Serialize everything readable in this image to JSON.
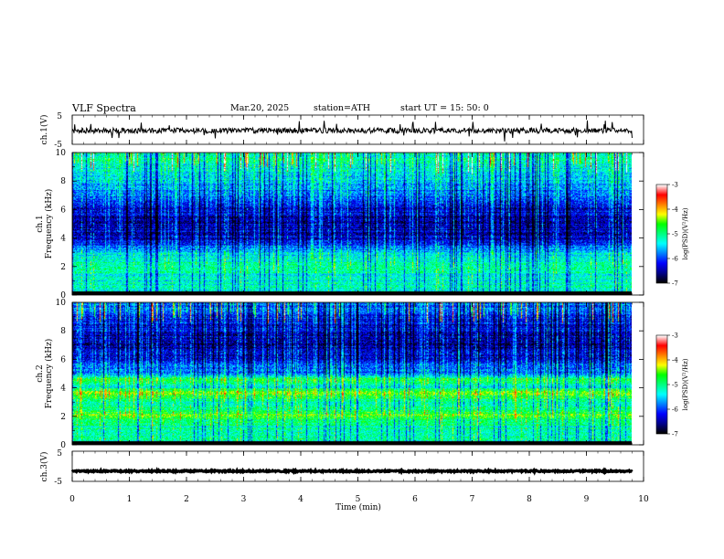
{
  "header": {
    "title": "VLF  Spectra",
    "date": "Mar.20, 2025",
    "station": "station=ATH",
    "start_ut": "start  UT  =    15: 50: 0"
  },
  "chart_data": [
    {
      "type": "line",
      "id": "ch1-waveform",
      "ylabel": "ch.1(V)",
      "ylim": [
        -5,
        5
      ],
      "yticks": [
        "5",
        "-5"
      ],
      "xlim": [
        0,
        10
      ],
      "note": "noisy waveform centred near -0.3 V, amplitude about ±1 V, with short spikes",
      "y_center": -0.3,
      "y_amplitude": 0.9
    },
    {
      "type": "heatmap",
      "id": "ch1-spectrogram",
      "ylabel": "ch.1\nFrequency  (kHz)",
      "ylim": [
        0,
        10
      ],
      "yticks": [
        "0",
        "2",
        "4",
        "6",
        "8",
        "10"
      ],
      "xlim": [
        0,
        9.8
      ],
      "colorbar": {
        "label": "log(PSD)(V²/Hz)",
        "ticks": [
          "-3",
          "-4",
          "-5",
          "-6",
          "-7"
        ],
        "range": [
          -7,
          -3
        ]
      },
      "background_level_by_khz": [
        [
          0,
          -5.3
        ],
        [
          1,
          -5.4
        ],
        [
          2,
          -5.0
        ],
        [
          3,
          -5.5
        ],
        [
          4,
          -6.4
        ],
        [
          5,
          -6.5
        ],
        [
          6,
          -6.4
        ],
        [
          7,
          -5.9
        ],
        [
          8,
          -5.6
        ],
        [
          9,
          -5.4
        ],
        [
          10,
          -5.3
        ]
      ]
    },
    {
      "type": "heatmap",
      "id": "ch2-spectrogram",
      "ylabel": "ch.2\nFrequency  (kHz)",
      "ylim": [
        0,
        10
      ],
      "yticks": [
        "0",
        "2",
        "4",
        "6",
        "8",
        "10"
      ],
      "xlim": [
        0,
        9.8
      ],
      "colorbar": {
        "label": "log(PSD)(V²/Hz)",
        "ticks": [
          "-3",
          "-4",
          "-5",
          "-6",
          "-7"
        ],
        "range": [
          -7,
          -3
        ]
      },
      "background_level_by_khz": [
        [
          0,
          -5.2
        ],
        [
          1,
          -5.3
        ],
        [
          2,
          -4.6
        ],
        [
          3,
          -5.2
        ],
        [
          3.6,
          -4.3
        ],
        [
          4,
          -5.3
        ],
        [
          4.5,
          -4.7
        ],
        [
          5,
          -5.8
        ],
        [
          6,
          -6.3
        ],
        [
          7,
          -6.6
        ],
        [
          8,
          -6.5
        ],
        [
          9,
          -6.3
        ],
        [
          10,
          -6.0
        ]
      ]
    },
    {
      "type": "line",
      "id": "ch3-waveform",
      "ylabel": "ch.3(V)",
      "ylim": [
        -5,
        5
      ],
      "yticks": [
        "5",
        "-5"
      ],
      "xlim": [
        0,
        10
      ],
      "note": "nearly flat thick trace near -1.5 V",
      "y_center": -1.6,
      "y_amplitude": 0.25
    }
  ],
  "x_axis": {
    "label": "Time  (min)",
    "ticks": [
      "0",
      "1",
      "2",
      "3",
      "4",
      "5",
      "6",
      "7",
      "8",
      "9",
      "10"
    ],
    "range": [
      0,
      10
    ]
  },
  "colors": {
    "colormap": [
      "#000000",
      "#00008b",
      "#0000ff",
      "#0080ff",
      "#00ffff",
      "#00ff80",
      "#00ff00",
      "#ffff00",
      "#ff8000",
      "#ff0000",
      "#ffffff"
    ]
  }
}
